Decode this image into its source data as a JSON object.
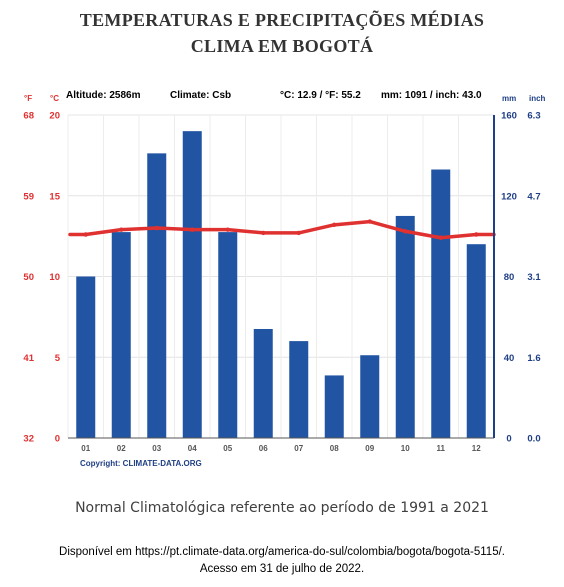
{
  "title_line1": "TEMPERATURAS E PRECIPITAÇÕES MÉDIAS",
  "title_line2": "CLIMA EM BOGOTÁ",
  "chart_data": {
    "type": "bar",
    "categories": [
      "01",
      "02",
      "03",
      "04",
      "05",
      "06",
      "07",
      "08",
      "09",
      "10",
      "11",
      "12"
    ],
    "series": [
      {
        "kind": "bar",
        "axis": "right-mm",
        "color": "#2155a3",
        "values": [
          80,
          102,
          141,
          152,
          102,
          54,
          48,
          31,
          41,
          110,
          133,
          96
        ]
      },
      {
        "kind": "line",
        "axis": "left-c",
        "color": "#e03131",
        "values": [
          12.6,
          12.9,
          13.0,
          12.9,
          12.9,
          12.7,
          12.7,
          13.2,
          13.4,
          12.8,
          12.4,
          12.6
        ]
      }
    ],
    "header": {
      "altitude": "Altitude: 2586m",
      "climate": "Climate: Csb",
      "temp_avg": "°C: 12.9 / °F: 55.2",
      "precip_total": "mm: 1091 / inch: 43.0"
    },
    "axes": {
      "left_f": {
        "unit": "°F",
        "ticks": [
          "68",
          "59",
          "50",
          "41",
          "32"
        ]
      },
      "left_c": {
        "unit": "°C",
        "ticks": [
          "20",
          "15",
          "10",
          "5",
          "0"
        ],
        "ylim": [
          0,
          20
        ]
      },
      "right_mm": {
        "unit": "mm",
        "ticks": [
          "160",
          "120",
          "80",
          "40",
          "0"
        ],
        "ylim": [
          0,
          160
        ]
      },
      "right_inch": {
        "unit": "inch",
        "ticks": [
          "6.3",
          "4.7",
          "3.1",
          "1.6",
          "0.0"
        ]
      }
    },
    "grid": true,
    "copyright": "Copyright: CLIMATE-DATA.ORG",
    "colors": {
      "fahrenheit": "#e03131",
      "celsius": "#e03131",
      "mm": "#1f3f86",
      "inch": "#1f3f86",
      "bar": "#2155a3",
      "line": "#e03131"
    }
  },
  "caption": "Normal Climatológica referente ao período de 1991 a 2021",
  "source_line1": "Disponível em https://pt.climate-data.org/america-do-sul/colombia/bogota/bogota-5115/.",
  "source_line2": "Acesso em 31 de julho de 2022."
}
